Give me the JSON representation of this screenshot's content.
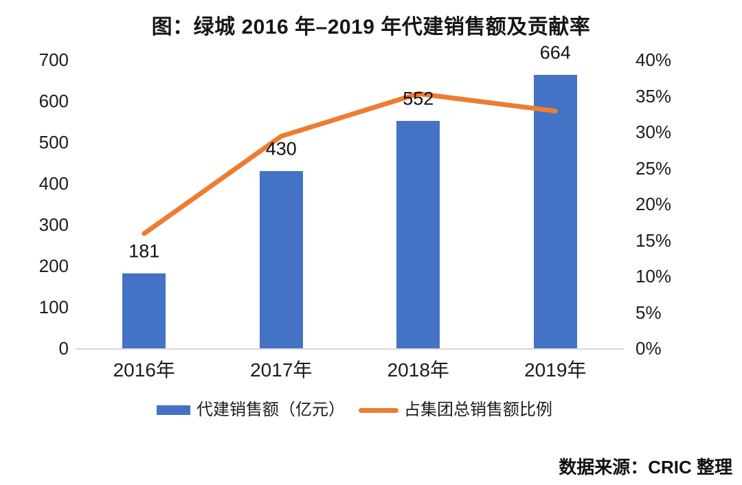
{
  "title": "图：绿城 2016 年–2019 年代建销售额及贡献率",
  "source": "数据来源：CRIC 整理",
  "colors": {
    "bar": "#4472C4",
    "line": "#ED7D31",
    "axis_line": "#D8D8D8",
    "text": "#1C1C1C"
  },
  "chart_data": {
    "type": "bar",
    "subtype": "bar+line combo, dual axis",
    "title": "图：绿城 2016 年–2019 年代建销售额及贡献率",
    "categories": [
      "2016年",
      "2017年",
      "2018年",
      "2019年"
    ],
    "series": [
      {
        "name": "代建销售额（亿元）",
        "type": "bar",
        "axis": "left",
        "color": "#4472C4",
        "values": [
          181,
          430,
          552,
          664
        ],
        "data_labels": [
          "181",
          "430",
          "552",
          "664"
        ]
      },
      {
        "name": "占集团总销售额比例",
        "type": "line",
        "axis": "right",
        "color": "#ED7D31",
        "values_percent": [
          15.9,
          29.4,
          35.3,
          32.9
        ]
      }
    ],
    "left_axis": {
      "min": 0,
      "max": 700,
      "ticks": [
        "700",
        "600",
        "500",
        "400",
        "300",
        "200",
        "100",
        "0"
      ]
    },
    "right_axis": {
      "min": 0,
      "max": 40,
      "ticks": [
        "40%",
        "35%",
        "30%",
        "25%",
        "20%",
        "15%",
        "10%",
        "5%",
        "0%"
      ]
    },
    "grid": "off",
    "legend": [
      {
        "label": "代建销售额（亿元）",
        "swatch": "bar",
        "color": "#4472C4"
      },
      {
        "label": "占集团总销售额比例",
        "swatch": "line",
        "color": "#ED7D31"
      }
    ],
    "legend_position": "bottom-center"
  }
}
